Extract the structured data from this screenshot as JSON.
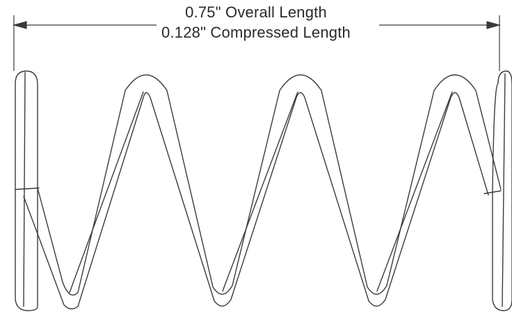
{
  "dimensions": {
    "overall_length": "0.75\" Overall Length",
    "compressed_length": "0.128\" Compressed Length"
  },
  "colors": {
    "line": "#3a3a3a",
    "background": "#ffffff"
  }
}
